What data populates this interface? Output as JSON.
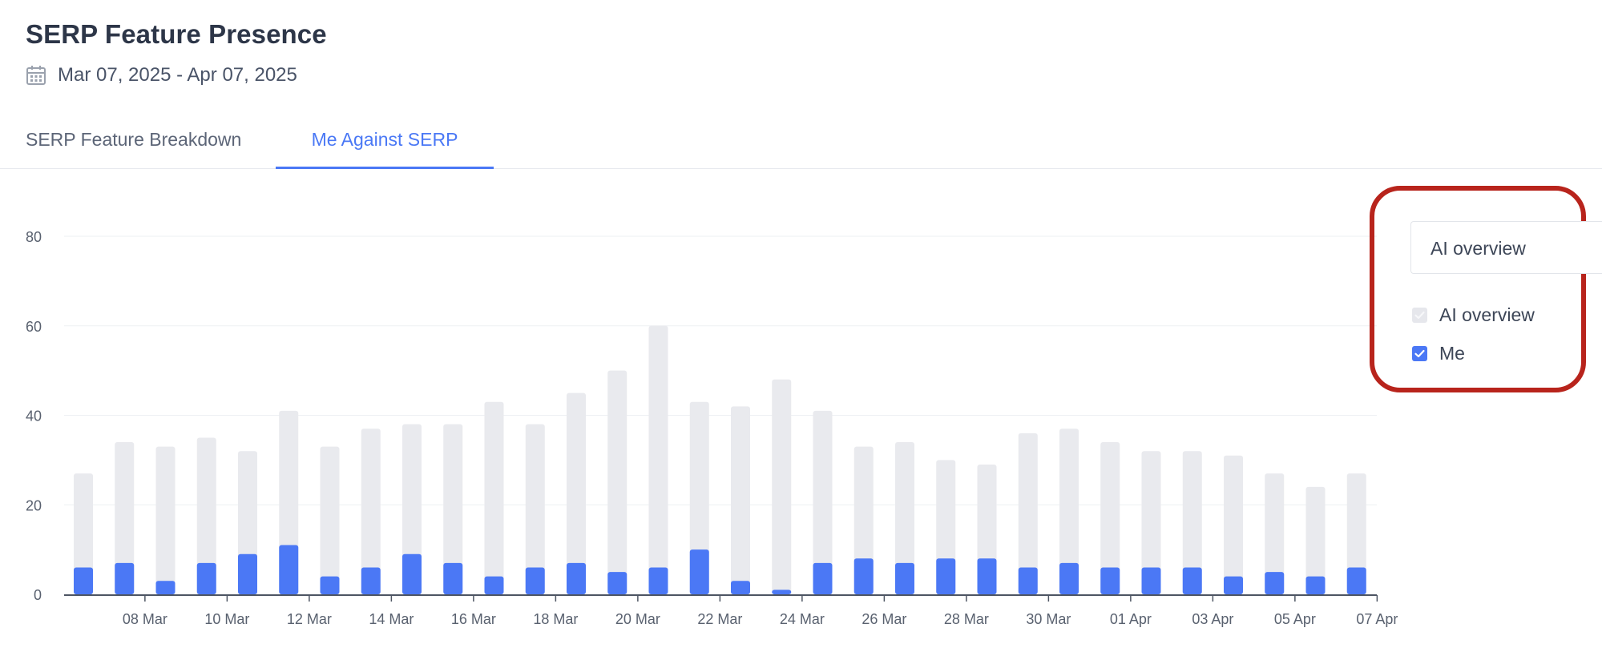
{
  "header": {
    "title": "SERP Feature Presence",
    "date_range": "Mar 07, 2025 - Apr 07, 2025"
  },
  "tabs": [
    {
      "label": "SERP Feature Breakdown",
      "active": false
    },
    {
      "label": "Me Against SERP",
      "active": true
    }
  ],
  "controls": {
    "select_value": "AI overview",
    "legend": [
      {
        "label": "AI overview",
        "checked": true,
        "color": "#e6e7ec",
        "check_color": "#f4f5f8"
      },
      {
        "label": "Me",
        "checked": true,
        "color": "#4b78f5"
      }
    ]
  },
  "colors": {
    "accent": "#4a78f5",
    "serp_bar": "#e9eaee",
    "me_bar": "#4b78f5",
    "highlight_border": "#b8241c"
  },
  "chart_data": {
    "type": "bar",
    "layout": "overlapping",
    "ylim": [
      0,
      80
    ],
    "yticks": [
      0,
      20,
      40,
      60,
      80
    ],
    "grid": true,
    "x": [
      "07 Mar",
      "08 Mar",
      "09 Mar",
      "10 Mar",
      "11 Mar",
      "12 Mar",
      "13 Mar",
      "14 Mar",
      "15 Mar",
      "16 Mar",
      "17 Mar",
      "18 Mar",
      "19 Mar",
      "20 Mar",
      "21 Mar",
      "22 Mar",
      "23 Mar",
      "24 Mar",
      "25 Mar",
      "26 Mar",
      "27 Mar",
      "28 Mar",
      "29 Mar",
      "30 Mar",
      "31 Mar",
      "01 Apr",
      "02 Apr",
      "03 Apr",
      "04 Apr",
      "05 Apr",
      "06 Apr",
      "07 Apr"
    ],
    "xtick_labels": [
      "08 Mar",
      "10 Mar",
      "12 Mar",
      "14 Mar",
      "16 Mar",
      "18 Mar",
      "20 Mar",
      "22 Mar",
      "24 Mar",
      "26 Mar",
      "28 Mar",
      "30 Mar",
      "01 Apr",
      "03 Apr",
      "05 Apr",
      "07 Apr"
    ],
    "series": [
      {
        "name": "AI overview",
        "values": [
          27,
          34,
          33,
          35,
          32,
          41,
          33,
          37,
          38,
          38,
          43,
          38,
          45,
          50,
          60,
          43,
          42,
          48,
          41,
          33,
          34,
          30,
          29,
          36,
          37,
          34,
          32,
          32,
          31,
          27,
          24,
          27
        ]
      },
      {
        "name": "Me",
        "values": [
          6,
          7,
          3,
          7,
          9,
          11,
          4,
          6,
          9,
          7,
          4,
          6,
          7,
          5,
          6,
          10,
          3,
          1,
          7,
          8,
          7,
          8,
          8,
          6,
          7,
          6,
          6,
          6,
          4,
          5,
          4,
          6
        ]
      }
    ]
  }
}
